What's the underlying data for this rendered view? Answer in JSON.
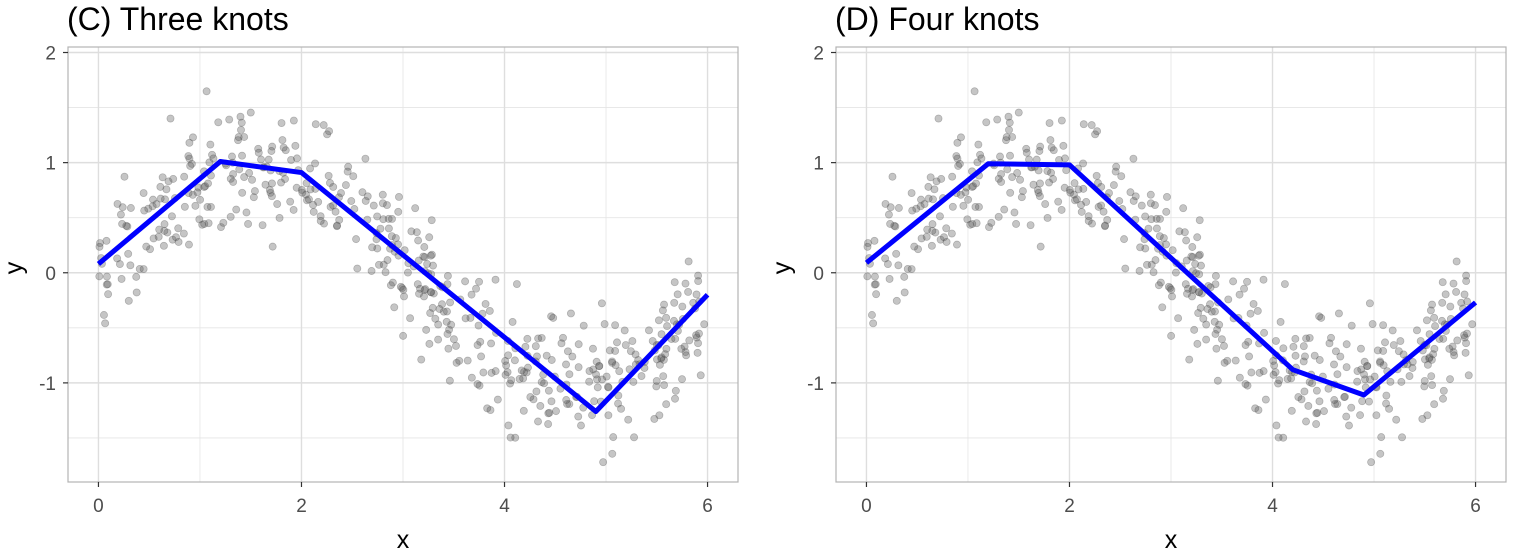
{
  "figure": {
    "panels": [
      {
        "panel_title": "(C) Three knots",
        "xlabel": "x",
        "ylabel": "y"
      },
      {
        "panel_title": "(D) Four knots",
        "xlabel": "x",
        "ylabel": "y"
      }
    ]
  },
  "chart_data": [
    {
      "type": "scatter",
      "title": "(C) Three knots",
      "xlabel": "x",
      "ylabel": "y",
      "xlim": [
        -0.3,
        6.3
      ],
      "ylim": [
        -1.9,
        2.05
      ],
      "xticks": [
        0,
        2,
        4,
        6
      ],
      "xtick_labels": [
        "0",
        "2",
        "4",
        "6"
      ],
      "yticks": [
        -1,
        0,
        1,
        2
      ],
      "ytick_labels": [
        "-1",
        "0",
        "1",
        "2"
      ],
      "grid": true,
      "colors": {
        "points": "#595959",
        "fit": "#0000ff",
        "grid": "#e5e5e5",
        "panel_border": "#b3b3b3"
      },
      "points": {
        "n": 500,
        "x_range": [
          0,
          6
        ],
        "trend": "sin(x)",
        "noise_sd": 0.3,
        "alpha": 0.35
      },
      "series": [
        {
          "x": [
            0.0,
            1.2,
            2.0,
            4.9,
            6.0
          ],
          "y": [
            0.08,
            1.01,
            0.91,
            -1.26,
            -0.2
          ]
        }
      ]
    },
    {
      "type": "scatter",
      "title": "(D) Four knots",
      "xlabel": "x",
      "ylabel": "y",
      "xlim": [
        -0.3,
        6.3
      ],
      "ylim": [
        -1.9,
        2.05
      ],
      "xticks": [
        0,
        2,
        4,
        6
      ],
      "xtick_labels": [
        "0",
        "2",
        "4",
        "6"
      ],
      "yticks": [
        -1,
        0,
        1,
        2
      ],
      "ytick_labels": [
        "-1",
        "0",
        "1",
        "2"
      ],
      "grid": true,
      "colors": {
        "points": "#595959",
        "fit": "#0000ff",
        "grid": "#e5e5e5",
        "panel_border": "#b3b3b3"
      },
      "points": {
        "n": 500,
        "x_range": [
          0,
          6
        ],
        "trend": "sin(x)",
        "noise_sd": 0.3,
        "alpha": 0.35
      },
      "series": [
        {
          "x": [
            0.0,
            1.2,
            2.0,
            4.2,
            4.9,
            6.0
          ],
          "y": [
            0.09,
            0.99,
            0.98,
            -0.88,
            -1.11,
            -0.27
          ]
        }
      ]
    }
  ]
}
